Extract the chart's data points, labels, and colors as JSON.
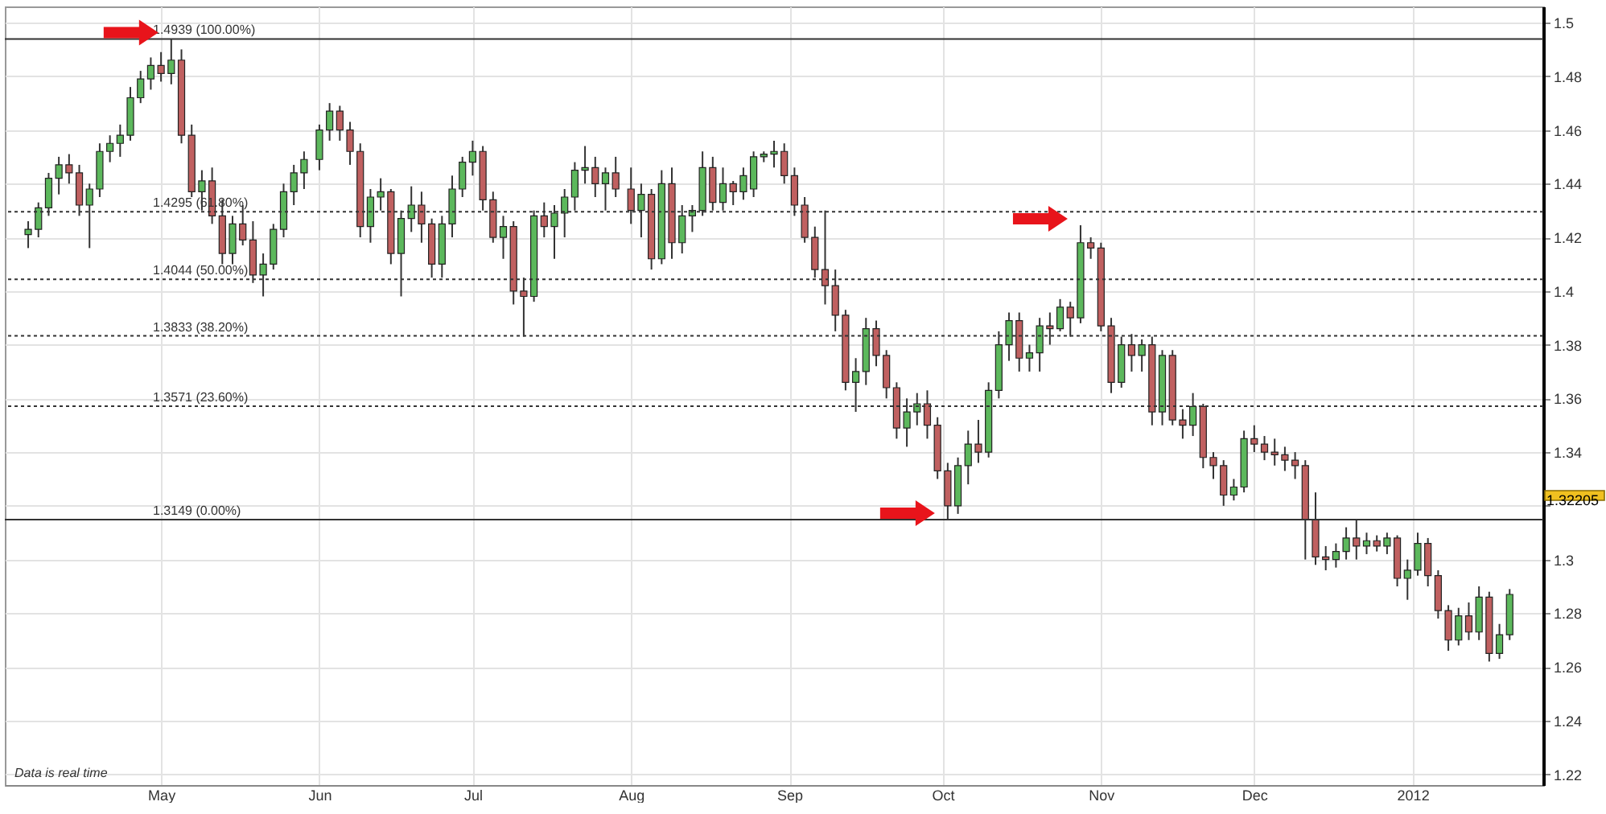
{
  "chart_data": {
    "type": "candlestick",
    "x": [
      "2011-04-05",
      "2011-04-07",
      "2011-04-09",
      "2011-04-11",
      "2011-04-13",
      "2011-04-15",
      "2011-04-17",
      "2011-04-19",
      "2011-04-21",
      "2011-04-23",
      "2011-04-25",
      "2011-04-27",
      "2011-04-29",
      "2011-05-01",
      "2011-05-03",
      "2011-05-05",
      "2011-05-07",
      "2011-05-09",
      "2011-05-11",
      "2011-05-13",
      "2011-05-15",
      "2011-05-17",
      "2011-05-19",
      "2011-05-21",
      "2011-05-23",
      "2011-05-25",
      "2011-05-27",
      "2011-05-29",
      "2011-06-01",
      "2011-06-03",
      "2011-06-05",
      "2011-06-07",
      "2011-06-09",
      "2011-06-11",
      "2011-06-13",
      "2011-06-15",
      "2011-06-17",
      "2011-06-19",
      "2011-06-21",
      "2011-06-23",
      "2011-06-25",
      "2011-06-27",
      "2011-06-29",
      "2011-07-01",
      "2011-07-03",
      "2011-07-05",
      "2011-07-07",
      "2011-07-09",
      "2011-07-11",
      "2011-07-13",
      "2011-07-15",
      "2011-07-17",
      "2011-07-19",
      "2011-07-21",
      "2011-07-23",
      "2011-07-25",
      "2011-07-27",
      "2011-07-29",
      "2011-08-01",
      "2011-08-03",
      "2011-08-05",
      "2011-08-07",
      "2011-08-09",
      "2011-08-11",
      "2011-08-13",
      "2011-08-15",
      "2011-08-17",
      "2011-08-19",
      "2011-08-21",
      "2011-08-23",
      "2011-08-25",
      "2011-08-27",
      "2011-08-29",
      "2011-08-31",
      "2011-09-02",
      "2011-09-04",
      "2011-09-06",
      "2011-09-08",
      "2011-09-10",
      "2011-09-12",
      "2011-09-14",
      "2011-09-16",
      "2011-09-18",
      "2011-09-20",
      "2011-09-22",
      "2011-09-24",
      "2011-09-26",
      "2011-09-28",
      "2011-09-30",
      "2011-10-02",
      "2011-10-04",
      "2011-10-06",
      "2011-10-08",
      "2011-10-10",
      "2011-10-12",
      "2011-10-14",
      "2011-10-16",
      "2011-10-18",
      "2011-10-20",
      "2011-10-22",
      "2011-10-24",
      "2011-10-26",
      "2011-10-28",
      "2011-10-30",
      "2011-11-01",
      "2011-11-03",
      "2011-11-05",
      "2011-11-07",
      "2011-11-09",
      "2011-11-11",
      "2011-11-13",
      "2011-11-15",
      "2011-11-17",
      "2011-11-19",
      "2011-11-21",
      "2011-11-23",
      "2011-11-25",
      "2011-11-27",
      "2011-11-29",
      "2011-12-01",
      "2011-12-03",
      "2011-12-05",
      "2011-12-07",
      "2011-12-09",
      "2011-12-11",
      "2011-12-13",
      "2011-12-15",
      "2011-12-17",
      "2011-12-19",
      "2011-12-21",
      "2011-12-23",
      "2011-12-25",
      "2011-12-27",
      "2011-12-29",
      "2011-12-31",
      "2012-01-02",
      "2012-01-04",
      "2012-01-06",
      "2012-01-08",
      "2012-01-10",
      "2012-01-12",
      "2012-01-14",
      "2012-01-16",
      "2012-01-18",
      "2012-01-20"
    ],
    "ohlc": [
      [
        1.421,
        1.426,
        1.416,
        1.423
      ],
      [
        1.423,
        1.433,
        1.42,
        1.431
      ],
      [
        1.431,
        1.444,
        1.428,
        1.442
      ],
      [
        1.442,
        1.45,
        1.436,
        1.447
      ],
      [
        1.447,
        1.451,
        1.44,
        1.444
      ],
      [
        1.444,
        1.447,
        1.428,
        1.432
      ],
      [
        1.432,
        1.44,
        1.416,
        1.438
      ],
      [
        1.438,
        1.455,
        1.435,
        1.452
      ],
      [
        1.452,
        1.458,
        1.448,
        1.455
      ],
      [
        1.455,
        1.462,
        1.45,
        1.458
      ],
      [
        1.458,
        1.476,
        1.456,
        1.472
      ],
      [
        1.472,
        1.482,
        1.47,
        1.479
      ],
      [
        1.479,
        1.487,
        1.475,
        1.484
      ],
      [
        1.484,
        1.489,
        1.478,
        1.481
      ],
      [
        1.481,
        1.4939,
        1.477,
        1.486
      ],
      [
        1.486,
        1.49,
        1.455,
        1.458
      ],
      [
        1.458,
        1.462,
        1.435,
        1.437
      ],
      [
        1.437,
        1.445,
        1.43,
        1.441
      ],
      [
        1.441,
        1.446,
        1.425,
        1.428
      ],
      [
        1.428,
        1.434,
        1.41,
        1.414
      ],
      [
        1.414,
        1.428,
        1.41,
        1.425
      ],
      [
        1.425,
        1.432,
        1.417,
        1.419
      ],
      [
        1.419,
        1.426,
        1.403,
        1.406
      ],
      [
        1.406,
        1.414,
        1.398,
        1.41
      ],
      [
        1.41,
        1.425,
        1.408,
        1.423
      ],
      [
        1.423,
        1.44,
        1.42,
        1.437
      ],
      [
        1.437,
        1.447,
        1.432,
        1.444
      ],
      [
        1.444,
        1.452,
        1.438,
        1.449
      ],
      [
        1.449,
        1.462,
        1.445,
        1.46
      ],
      [
        1.46,
        1.47,
        1.456,
        1.467
      ],
      [
        1.467,
        1.469,
        1.456,
        1.46
      ],
      [
        1.46,
        1.463,
        1.447,
        1.452
      ],
      [
        1.452,
        1.455,
        1.42,
        1.424
      ],
      [
        1.424,
        1.438,
        1.418,
        1.435
      ],
      [
        1.435,
        1.442,
        1.43,
        1.437
      ],
      [
        1.437,
        1.438,
        1.41,
        1.414
      ],
      [
        1.414,
        1.43,
        1.398,
        1.427
      ],
      [
        1.427,
        1.439,
        1.422,
        1.432
      ],
      [
        1.432,
        1.437,
        1.418,
        1.425
      ],
      [
        1.425,
        1.427,
        1.405,
        1.41
      ],
      [
        1.41,
        1.428,
        1.405,
        1.425
      ],
      [
        1.425,
        1.443,
        1.42,
        1.438
      ],
      [
        1.438,
        1.45,
        1.435,
        1.448
      ],
      [
        1.448,
        1.456,
        1.443,
        1.452
      ],
      [
        1.452,
        1.454,
        1.43,
        1.434
      ],
      [
        1.434,
        1.437,
        1.418,
        1.42
      ],
      [
        1.42,
        1.428,
        1.412,
        1.424
      ],
      [
        1.424,
        1.426,
        1.395,
        1.4
      ],
      [
        1.4,
        1.405,
        1.383,
        1.398
      ],
      [
        1.398,
        1.43,
        1.396,
        1.428
      ],
      [
        1.428,
        1.433,
        1.42,
        1.424
      ],
      [
        1.424,
        1.432,
        1.412,
        1.429
      ],
      [
        1.429,
        1.438,
        1.42,
        1.435
      ],
      [
        1.435,
        1.448,
        1.43,
        1.445
      ],
      [
        1.445,
        1.454,
        1.44,
        1.446
      ],
      [
        1.446,
        1.45,
        1.435,
        1.44
      ],
      [
        1.44,
        1.446,
        1.43,
        1.444
      ],
      [
        1.444,
        1.45,
        1.435,
        1.438
      ],
      [
        1.438,
        1.446,
        1.425,
        1.43
      ],
      [
        1.43,
        1.44,
        1.42,
        1.436
      ],
      [
        1.436,
        1.438,
        1.408,
        1.412
      ],
      [
        1.412,
        1.445,
        1.41,
        1.44
      ],
      [
        1.44,
        1.446,
        1.412,
        1.418
      ],
      [
        1.418,
        1.432,
        1.414,
        1.428
      ],
      [
        1.428,
        1.432,
        1.422,
        1.43
      ],
      [
        1.43,
        1.452,
        1.428,
        1.446
      ],
      [
        1.446,
        1.45,
        1.43,
        1.433
      ],
      [
        1.433,
        1.446,
        1.43,
        1.44
      ],
      [
        1.44,
        1.441,
        1.432,
        1.437
      ],
      [
        1.437,
        1.446,
        1.434,
        1.443
      ],
      [
        1.438,
        1.452,
        1.435,
        1.45
      ],
      [
        1.45,
        1.452,
        1.448,
        1.451
      ],
      [
        1.451,
        1.456,
        1.446,
        1.452
      ],
      [
        1.452,
        1.455,
        1.44,
        1.443
      ],
      [
        1.443,
        1.446,
        1.428,
        1.432
      ],
      [
        1.432,
        1.435,
        1.418,
        1.42
      ],
      [
        1.42,
        1.424,
        1.405,
        1.408
      ],
      [
        1.408,
        1.43,
        1.395,
        1.402
      ],
      [
        1.402,
        1.408,
        1.385,
        1.391
      ],
      [
        1.391,
        1.393,
        1.363,
        1.366
      ],
      [
        1.366,
        1.375,
        1.355,
        1.37
      ],
      [
        1.37,
        1.39,
        1.365,
        1.386
      ],
      [
        1.386,
        1.389,
        1.372,
        1.376
      ],
      [
        1.376,
        1.378,
        1.36,
        1.364
      ],
      [
        1.364,
        1.366,
        1.345,
        1.349
      ],
      [
        1.349,
        1.36,
        1.342,
        1.355
      ],
      [
        1.355,
        1.362,
        1.35,
        1.358
      ],
      [
        1.358,
        1.363,
        1.345,
        1.35
      ],
      [
        1.35,
        1.353,
        1.33,
        1.333
      ],
      [
        1.333,
        1.336,
        1.3149,
        1.32
      ],
      [
        1.32,
        1.338,
        1.317,
        1.335
      ],
      [
        1.335,
        1.348,
        1.328,
        1.343
      ],
      [
        1.343,
        1.352,
        1.336,
        1.34
      ],
      [
        1.34,
        1.366,
        1.338,
        1.363
      ],
      [
        1.363,
        1.385,
        1.36,
        1.38
      ],
      [
        1.38,
        1.392,
        1.374,
        1.389
      ],
      [
        1.389,
        1.392,
        1.37,
        1.375
      ],
      [
        1.375,
        1.38,
        1.37,
        1.377
      ],
      [
        1.377,
        1.39,
        1.37,
        1.387
      ],
      [
        1.387,
        1.392,
        1.38,
        1.386
      ],
      [
        1.386,
        1.397,
        1.385,
        1.394
      ],
      [
        1.394,
        1.396,
        1.383,
        1.39
      ],
      [
        1.39,
        1.4245,
        1.388,
        1.418
      ],
      [
        1.418,
        1.42,
        1.412,
        1.416
      ],
      [
        1.416,
        1.418,
        1.385,
        1.387
      ],
      [
        1.387,
        1.39,
        1.362,
        1.366
      ],
      [
        1.366,
        1.383,
        1.364,
        1.38
      ],
      [
        1.38,
        1.384,
        1.37,
        1.376
      ],
      [
        1.376,
        1.382,
        1.37,
        1.38
      ],
      [
        1.38,
        1.383,
        1.35,
        1.355
      ],
      [
        1.355,
        1.378,
        1.35,
        1.376
      ],
      [
        1.376,
        1.378,
        1.35,
        1.352
      ],
      [
        1.352,
        1.356,
        1.345,
        1.35
      ],
      [
        1.35,
        1.362,
        1.346,
        1.357
      ],
      [
        1.357,
        1.358,
        1.334,
        1.338
      ],
      [
        1.338,
        1.34,
        1.33,
        1.335
      ],
      [
        1.335,
        1.337,
        1.32,
        1.324
      ],
      [
        1.324,
        1.33,
        1.322,
        1.327
      ],
      [
        1.327,
        1.348,
        1.325,
        1.345
      ],
      [
        1.345,
        1.35,
        1.34,
        1.343
      ],
      [
        1.343,
        1.346,
        1.337,
        1.34
      ],
      [
        1.34,
        1.345,
        1.335,
        1.339
      ],
      [
        1.339,
        1.342,
        1.333,
        1.337
      ],
      [
        1.337,
        1.34,
        1.33,
        1.335
      ],
      [
        1.335,
        1.337,
        1.3,
        1.315
      ],
      [
        1.315,
        1.325,
        1.298,
        1.301
      ],
      [
        1.301,
        1.305,
        1.296,
        1.3
      ],
      [
        1.3,
        1.306,
        1.297,
        1.303
      ],
      [
        1.303,
        1.312,
        1.3,
        1.308
      ],
      [
        1.308,
        1.315,
        1.3,
        1.305
      ],
      [
        1.305,
        1.31,
        1.302,
        1.307
      ],
      [
        1.307,
        1.309,
        1.303,
        1.305
      ],
      [
        1.305,
        1.31,
        1.302,
        1.308
      ],
      [
        1.308,
        1.309,
        1.29,
        1.293
      ],
      [
        1.293,
        1.3,
        1.285,
        1.296
      ],
      [
        1.296,
        1.31,
        1.294,
        1.306
      ],
      [
        1.306,
        1.308,
        1.29,
        1.294
      ],
      [
        1.294,
        1.296,
        1.278,
        1.281
      ],
      [
        1.281,
        1.283,
        1.266,
        1.27
      ],
      [
        1.27,
        1.282,
        1.268,
        1.279
      ],
      [
        1.279,
        1.284,
        1.27,
        1.273
      ],
      [
        1.273,
        1.29,
        1.27,
        1.286
      ],
      [
        1.286,
        1.288,
        1.262,
        1.265
      ],
      [
        1.265,
        1.276,
        1.263,
        1.272
      ],
      [
        1.272,
        1.289,
        1.27,
        1.287
      ]
    ],
    "colors": [
      "#5cb85c",
      "#5cb85c",
      "#5cb85c",
      "#5cb85c",
      "#c06060",
      "#c06060",
      "#5cb85c",
      "#5cb85c",
      "#5cb85c",
      "#5cb85c",
      "#5cb85c",
      "#5cb85c",
      "#5cb85c",
      "#c06060",
      "#5cb85c",
      "#c06060",
      "#c06060",
      "#5cb85c",
      "#c06060",
      "#c06060",
      "#5cb85c",
      "#c06060",
      "#c06060",
      "#5cb85c",
      "#5cb85c",
      "#5cb85c",
      "#5cb85c",
      "#5cb85c",
      "#5cb85c",
      "#5cb85c",
      "#c06060",
      "#c06060",
      "#c06060",
      "#5cb85c",
      "#5cb85c",
      "#c06060",
      "#5cb85c",
      "#5cb85c",
      "#c06060",
      "#c06060",
      "#5cb85c",
      "#5cb85c",
      "#5cb85c",
      "#5cb85c",
      "#c06060",
      "#c06060",
      "#5cb85c",
      "#c06060",
      "#c06060",
      "#5cb85c",
      "#c06060",
      "#5cb85c",
      "#5cb85c",
      "#5cb85c",
      "#5cb85c",
      "#c06060",
      "#5cb85c",
      "#c06060",
      "#c06060",
      "#5cb85c",
      "#c06060",
      "#5cb85c",
      "#c06060",
      "#5cb85c",
      "#5cb85c",
      "#5cb85c",
      "#c06060",
      "#5cb85c",
      "#c06060",
      "#5cb85c",
      "#5cb85c",
      "#5cb85c",
      "#5cb85c",
      "#c06060",
      "#c06060",
      "#c06060",
      "#c06060",
      "#c06060",
      "#c06060",
      "#c06060",
      "#5cb85c",
      "#5cb85c",
      "#c06060",
      "#c06060",
      "#c06060",
      "#5cb85c",
      "#5cb85c",
      "#c06060",
      "#c06060",
      "#c06060",
      "#5cb85c",
      "#5cb85c",
      "#c06060",
      "#5cb85c",
      "#5cb85c",
      "#5cb85c",
      "#c06060",
      "#5cb85c",
      "#5cb85c",
      "#c06060",
      "#5cb85c",
      "#c06060",
      "#5cb85c",
      "#c06060",
      "#c06060",
      "#c06060",
      "#5cb85c",
      "#c06060",
      "#5cb85c",
      "#c06060",
      "#5cb85c",
      "#c06060",
      "#c06060",
      "#5cb85c",
      "#c06060",
      "#c06060",
      "#c06060",
      "#5cb85c",
      "#5cb85c",
      "#c06060",
      "#c06060",
      "#c06060",
      "#c06060",
      "#c06060",
      "#c06060",
      "#c06060",
      "#c06060",
      "#5cb85c",
      "#5cb85c",
      "#c06060",
      "#5cb85c",
      "#c06060",
      "#5cb85c",
      "#c06060",
      "#5cb85c",
      "#5cb85c",
      "#c06060",
      "#c06060",
      "#c06060",
      "#5cb85c",
      "#c06060",
      "#5cb85c",
      "#c06060",
      "#5cb85c",
      "#5cb85c"
    ],
    "xlim": [
      "2011-04-02",
      "2012-01-25"
    ],
    "xticks": [
      {
        "value": "2011-05-01",
        "label": "May"
      },
      {
        "value": "2011-06-01",
        "label": "Jun"
      },
      {
        "value": "2011-07-01",
        "label": "Jul"
      },
      {
        "value": "2011-08-01",
        "label": "Aug"
      },
      {
        "value": "2011-09-01",
        "label": "Sep"
      },
      {
        "value": "2011-10-01",
        "label": "Oct"
      },
      {
        "value": "2011-11-01",
        "label": "Nov"
      },
      {
        "value": "2011-12-01",
        "label": "Dec"
      },
      {
        "value": "2012-01-01",
        "label": "2012"
      }
    ],
    "ylim": [
      1.216,
      1.506
    ],
    "yticks": [
      1.22,
      1.24,
      1.26,
      1.28,
      1.3,
      {
        "value": 1.32,
        "label": null
      },
      1.34,
      1.36,
      1.38,
      1.4,
      1.42,
      1.44,
      1.46,
      1.48,
      1.5
    ],
    "grid": true,
    "ref_lines": [
      {
        "axis": "y",
        "value": 1.4939,
        "label": "1.4939 (100.00%)",
        "line_style": "solid",
        "color": "#333333"
      },
      {
        "axis": "y",
        "value": 1.4295,
        "label": "1.4295 (61.80%)",
        "line_style": "dotted",
        "color": "#333333"
      },
      {
        "axis": "y",
        "value": 1.4044,
        "label": "1.4044 (50.00%)",
        "line_style": "dotted",
        "color": "#333333"
      },
      {
        "axis": "y",
        "value": 1.3833,
        "label": "1.3833 (38.20%)",
        "line_style": "dotted",
        "color": "#333333"
      },
      {
        "axis": "y",
        "value": 1.3571,
        "label": "1.3571 (23.60%)",
        "line_style": "dotted",
        "color": "#333333"
      },
      {
        "axis": "y",
        "value": 1.3149,
        "label": "1.3149 (0.00%)",
        "line_style": "solid",
        "color": "#333333"
      }
    ],
    "annotations": [
      "1.32205",
      "Data is real time"
    ]
  }
}
